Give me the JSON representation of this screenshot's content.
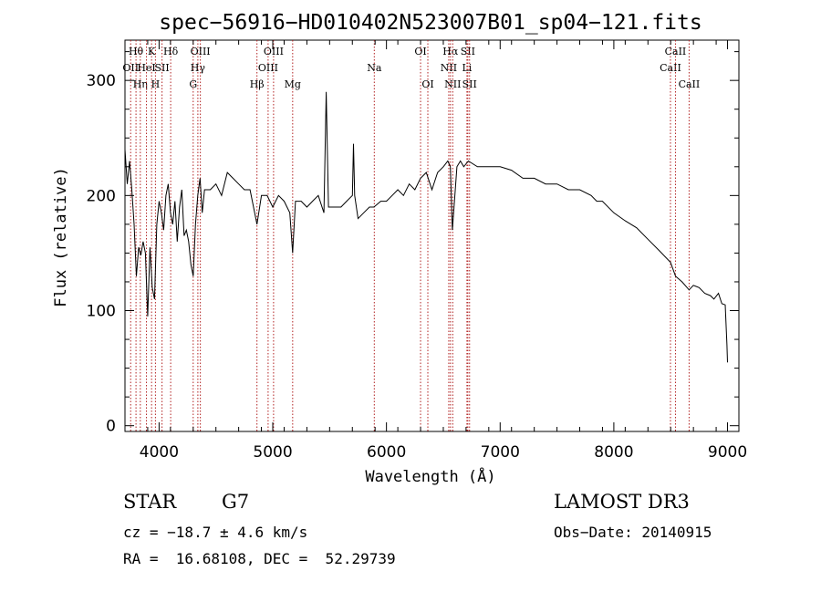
{
  "chart_data": {
    "type": "line",
    "title": "spec−56916−HD010402N523007B01_sp04−121.fits",
    "xlabel": "Wavelength (Å)",
    "ylabel": "Flux (relative)",
    "xlim": [
      3700,
      9100
    ],
    "ylim": [
      -5,
      335
    ],
    "xticks": [
      4000,
      5000,
      6000,
      7000,
      8000,
      9000
    ],
    "yticks": [
      0,
      100,
      200,
      300
    ],
    "grid": false,
    "legend": "none",
    "line_color": "#000000",
    "marker_color": "#b22222",
    "series": [
      {
        "x": [
          3700,
          3720,
          3740,
          3760,
          3780,
          3800,
          3820,
          3840,
          3860,
          3880,
          3900,
          3920,
          3940,
          3960,
          3980,
          4000,
          4020,
          4040,
          4060,
          4080,
          4100,
          4120,
          4140,
          4160,
          4180,
          4200,
          4220,
          4240,
          4260,
          4280,
          4300,
          4320,
          4340,
          4360,
          4380,
          4400,
          4450,
          4500,
          4550,
          4600,
          4650,
          4700,
          4750,
          4800,
          4861,
          4900,
          4950,
          5000,
          5050,
          5100,
          5150,
          5175,
          5200,
          5250,
          5300,
          5350,
          5400,
          5450,
          5470,
          5490,
          5550,
          5600,
          5650,
          5700,
          5710,
          5720,
          5750,
          5800,
          5850,
          5890,
          5950,
          6000,
          6050,
          6100,
          6150,
          6200,
          6250,
          6300,
          6350,
          6400,
          6450,
          6500,
          6540,
          6562,
          6580,
          6620,
          6650,
          6680,
          6720,
          6800,
          6900,
          7000,
          7100,
          7200,
          7300,
          7400,
          7500,
          7600,
          7700,
          7800,
          7850,
          7900,
          8000,
          8100,
          8200,
          8300,
          8400,
          8498,
          8542,
          8600,
          8662,
          8700,
          8750,
          8800,
          8850,
          8880,
          8920,
          8950,
          8980,
          8995,
          9000
        ],
        "y": [
          240,
          210,
          230,
          205,
          175,
          130,
          155,
          148,
          160,
          150,
          95,
          155,
          120,
          110,
          175,
          195,
          185,
          170,
          200,
          210,
          185,
          175,
          195,
          160,
          190,
          205,
          165,
          170,
          160,
          140,
          130,
          175,
          200,
          215,
          185,
          205,
          205,
          210,
          200,
          220,
          215,
          210,
          205,
          205,
          175,
          200,
          200,
          190,
          200,
          195,
          185,
          150,
          195,
          195,
          190,
          195,
          200,
          185,
          290,
          190,
          190,
          190,
          195,
          200,
          245,
          200,
          180,
          185,
          190,
          190,
          195,
          195,
          200,
          205,
          200,
          210,
          205,
          215,
          220,
          205,
          220,
          225,
          230,
          225,
          170,
          225,
          230,
          225,
          230,
          225,
          225,
          225,
          222,
          215,
          215,
          210,
          210,
          205,
          205,
          200,
          195,
          195,
          185,
          178,
          172,
          162,
          152,
          142,
          130,
          125,
          118,
          122,
          120,
          115,
          113,
          110,
          115,
          106,
          105,
          70,
          55
        ]
      }
    ],
    "line_markers": [
      {
        "wavelength": 3750,
        "label": "OII",
        "row": 2
      },
      {
        "wavelength": 3797,
        "label": "Hθ",
        "row": 1
      },
      {
        "wavelength": 3835,
        "label": "Hη",
        "row": 3
      },
      {
        "wavelength": 3889,
        "label": "HeI",
        "row": 2
      },
      {
        "wavelength": 3934,
        "label": "K",
        "row": 1
      },
      {
        "wavelength": 3968,
        "label": "H",
        "row": 3
      },
      {
        "wavelength": 4026,
        "label": "SII",
        "row": 2
      },
      {
        "wavelength": 4102,
        "label": "Hδ",
        "row": 1
      },
      {
        "wavelength": 4300,
        "label": "G",
        "row": 3
      },
      {
        "wavelength": 4341,
        "label": "Hγ",
        "row": 2
      },
      {
        "wavelength": 4363,
        "label": "OIII",
        "row": 1
      },
      {
        "wavelength": 4861,
        "label": "Hβ",
        "row": 3
      },
      {
        "wavelength": 4959,
        "label": "OIII",
        "row": 2
      },
      {
        "wavelength": 5007,
        "label": "OIII",
        "row": 1
      },
      {
        "wavelength": 5175,
        "label": "Mg",
        "row": 3
      },
      {
        "wavelength": 5893,
        "label": "Na",
        "row": 2
      },
      {
        "wavelength": 6300,
        "label": "OI",
        "row": 1
      },
      {
        "wavelength": 6364,
        "label": "OI",
        "row": 3
      },
      {
        "wavelength": 6548,
        "label": "NII",
        "row": 2
      },
      {
        "wavelength": 6563,
        "label": "Hα",
        "row": 1
      },
      {
        "wavelength": 6583,
        "label": "NII",
        "row": 3
      },
      {
        "wavelength": 6708,
        "label": "Li",
        "row": 2
      },
      {
        "wavelength": 6716,
        "label": "SII",
        "row": 1
      },
      {
        "wavelength": 6731,
        "label": "SII",
        "row": 3
      },
      {
        "wavelength": 8498,
        "label": "CaII",
        "row": 2
      },
      {
        "wavelength": 8542,
        "label": "CaII",
        "row": 1
      },
      {
        "wavelength": 8662,
        "label": "CaII",
        "row": 3
      }
    ]
  },
  "info": {
    "object_class": "STAR",
    "subclass": "G7",
    "survey": "LAMOST DR3",
    "cz": "cz = −18.7 ± 4.6 km/s",
    "obs_date": "Obs−Date: 20140915",
    "coords": "RA =  16.68108, DEC =  52.29739"
  }
}
